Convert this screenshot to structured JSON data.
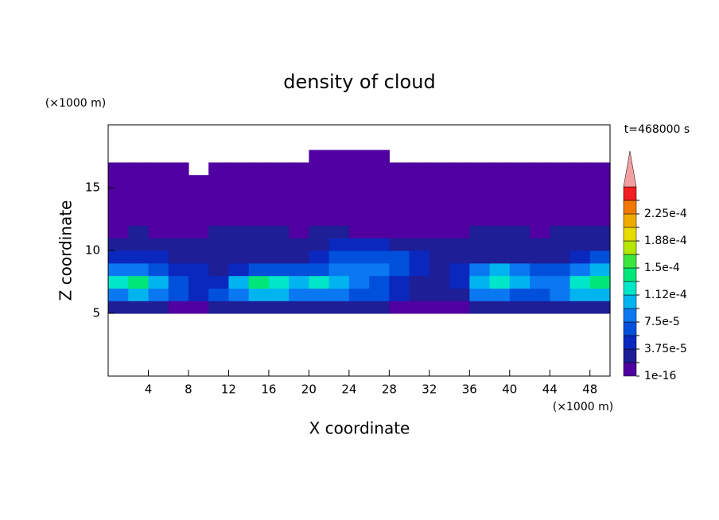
{
  "chart_data": {
    "type": "contour",
    "title": "density of cloud",
    "xlabel": "X coordinate",
    "ylabel": "Z coordinate",
    "x_unit": "(×1000 m)",
    "y_unit": "(×1000 m)",
    "annotation": "t=468000 s",
    "xlim": [
      0,
      50
    ],
    "ylim": [
      0,
      20
    ],
    "xticks": [
      4,
      8,
      12,
      16,
      20,
      24,
      28,
      32,
      36,
      40,
      44,
      48
    ],
    "yticks": [
      5,
      10,
      15
    ],
    "levels": [
      1e-16,
      1.875e-05,
      3.75e-05,
      5.625e-05,
      7.5e-05,
      9.375e-05,
      0.0001125,
      0.00013125,
      0.00015,
      0.00016875,
      0.0001875,
      0.00020625,
      0.000225,
      0.00024375
    ],
    "level_labels": [
      "1e-16",
      null,
      "3.75e-5",
      null,
      "7.5e-5",
      null,
      "1.12e-4",
      null,
      "1.5e-4",
      null,
      "1.88e-4",
      null,
      "2.25e-4",
      null
    ],
    "colors": [
      "#5000a0",
      "#1e1e96",
      "#0a28be",
      "#0050dc",
      "#0a78f0",
      "#00b4f0",
      "#00e6c8",
      "#00e678",
      "#3ce63c",
      "#b4e600",
      "#e6dc00",
      "#f0aa00",
      "#f07800",
      "#f01e1e"
    ],
    "extend_color": "#f0a0a0",
    "x": [
      1,
      3,
      5,
      7,
      9,
      11,
      13,
      15,
      17,
      19,
      21,
      23,
      25,
      27,
      29,
      31,
      33,
      35,
      37,
      39,
      41,
      43,
      45,
      47,
      49
    ],
    "z": [
      5.5,
      6.5,
      7.5,
      8.5,
      9.5,
      10.5,
      11.5,
      12.5,
      13.5,
      14.5,
      15.5,
      16.5,
      17.5
    ],
    "field": [
      [
        2.5e-05,
        2.5e-05,
        2.5e-05,
        1e-06,
        1e-06,
        2.5e-05,
        2.5e-05,
        2.5e-05,
        2.5e-05,
        2.5e-05,
        2.5e-05,
        2.5e-05,
        2.5e-05,
        2.5e-05,
        1e-06,
        1e-06,
        1e-06,
        1e-06,
        2.5e-05,
        2.5e-05,
        2.5e-05,
        2.5e-05,
        2.5e-05,
        2.5e-05,
        2.5e-05
      ],
      [
        8.5e-05,
        0.0001,
        8.5e-05,
        6.5e-05,
        4.5e-05,
        6.5e-05,
        8.5e-05,
        0.0001,
        0.0001,
        8.5e-05,
        8.5e-05,
        8.5e-05,
        6.5e-05,
        6.5e-05,
        4.5e-05,
        2.5e-05,
        2.5e-05,
        2.5e-05,
        8.5e-05,
        8.5e-05,
        6.5e-05,
        6.5e-05,
        8.5e-05,
        0.0001,
        0.0001
      ],
      [
        0.00012,
        0.00014,
        0.0001,
        6.5e-05,
        4.5e-05,
        4.5e-05,
        0.0001,
        0.00014,
        0.00012,
        0.0001,
        0.00012,
        0.0001,
        8.5e-05,
        6.5e-05,
        4.5e-05,
        2.5e-05,
        2.5e-05,
        4.5e-05,
        0.0001,
        0.00012,
        0.0001,
        8.5e-05,
        8.5e-05,
        0.00012,
        0.00014
      ],
      [
        8.5e-05,
        8.5e-05,
        6.5e-05,
        4.5e-05,
        4.5e-05,
        2.5e-05,
        4.5e-05,
        6.5e-05,
        6.5e-05,
        6.5e-05,
        6.5e-05,
        8.5e-05,
        8.5e-05,
        8.5e-05,
        6.5e-05,
        4.5e-05,
        2.5e-05,
        4.5e-05,
        8.5e-05,
        0.0001,
        8.5e-05,
        6.5e-05,
        6.5e-05,
        8.5e-05,
        0.0001
      ],
      [
        4.5e-05,
        4.5e-05,
        4.5e-05,
        2.5e-05,
        2.5e-05,
        2.5e-05,
        2.5e-05,
        2.5e-05,
        2.5e-05,
        2.5e-05,
        4.5e-05,
        6.5e-05,
        6.5e-05,
        6.5e-05,
        6.5e-05,
        4.5e-05,
        2.5e-05,
        2.5e-05,
        2.5e-05,
        2.5e-05,
        2.5e-05,
        2.5e-05,
        2.5e-05,
        4.5e-05,
        6.5e-05
      ],
      [
        2.5e-05,
        2.5e-05,
        2.5e-05,
        2.5e-05,
        2.5e-05,
        2.5e-05,
        2.5e-05,
        2.5e-05,
        2.5e-05,
        2.5e-05,
        2.5e-05,
        4.5e-05,
        4.5e-05,
        4.5e-05,
        2.5e-05,
        2.5e-05,
        2.5e-05,
        2.5e-05,
        2.5e-05,
        2.5e-05,
        2.5e-05,
        2.5e-05,
        2.5e-05,
        2.5e-05,
        2.5e-05
      ],
      [
        1e-06,
        2.5e-05,
        1e-06,
        1e-06,
        1e-06,
        2.5e-05,
        2.5e-05,
        2.5e-05,
        2.5e-05,
        1e-06,
        2.5e-05,
        2.5e-05,
        1e-06,
        1e-06,
        1e-06,
        1e-06,
        1e-06,
        1e-06,
        2.5e-05,
        2.5e-05,
        2.5e-05,
        1e-06,
        2.5e-05,
        2.5e-05,
        2.5e-05
      ],
      [
        1e-06,
        1e-06,
        1e-06,
        1e-06,
        1e-06,
        1e-06,
        1e-06,
        1e-06,
        1e-06,
        1e-06,
        1e-06,
        1e-06,
        1e-06,
        1e-06,
        1e-06,
        1e-06,
        1e-06,
        1e-06,
        1e-06,
        1e-06,
        1e-06,
        1e-06,
        1e-06,
        1e-06,
        1e-06
      ],
      [
        1e-06,
        1e-06,
        1e-06,
        1e-06,
        1e-06,
        1e-06,
        1e-06,
        1e-06,
        1e-06,
        1e-06,
        1e-06,
        1e-06,
        1e-06,
        1e-06,
        1e-06,
        1e-06,
        1e-06,
        1e-06,
        1e-06,
        1e-06,
        1e-06,
        1e-06,
        1e-06,
        1e-06,
        1e-06
      ],
      [
        1e-06,
        1e-06,
        1e-06,
        1e-06,
        1e-06,
        1e-06,
        1e-06,
        1e-06,
        1e-06,
        1e-06,
        1e-06,
        1e-06,
        1e-06,
        1e-06,
        1e-06,
        1e-06,
        1e-06,
        1e-06,
        1e-06,
        1e-06,
        1e-06,
        1e-06,
        1e-06,
        1e-06,
        1e-06
      ],
      [
        1e-06,
        1e-06,
        1e-06,
        1e-06,
        1e-06,
        1e-06,
        1e-06,
        1e-06,
        1e-06,
        1e-06,
        1e-06,
        1e-06,
        1e-06,
        1e-06,
        1e-06,
        1e-06,
        1e-06,
        1e-06,
        1e-06,
        1e-06,
        1e-06,
        1e-06,
        1e-06,
        1e-06,
        1e-06
      ],
      [
        1e-06,
        1e-06,
        1e-06,
        1e-06,
        null,
        1e-06,
        1e-06,
        1e-06,
        1e-06,
        1e-06,
        1e-06,
        1e-06,
        1e-06,
        1e-06,
        1e-06,
        1e-06,
        1e-06,
        1e-06,
        1e-06,
        1e-06,
        1e-06,
        1e-06,
        1e-06,
        1e-06,
        1e-06
      ],
      [
        null,
        null,
        null,
        null,
        null,
        null,
        null,
        null,
        null,
        null,
        1e-06,
        1e-06,
        1e-06,
        1e-06,
        null,
        null,
        null,
        null,
        null,
        null,
        null,
        null,
        null,
        null,
        null
      ]
    ]
  }
}
